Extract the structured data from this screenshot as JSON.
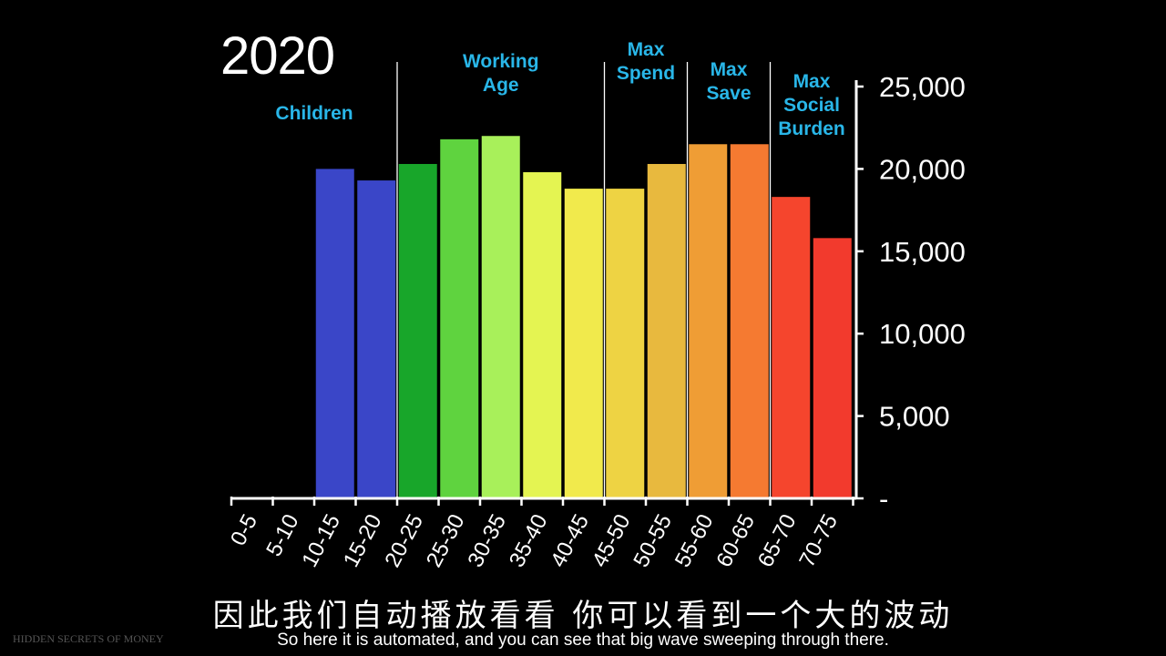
{
  "year": "2020",
  "chart_data": {
    "type": "bar",
    "title": "2020",
    "categories": [
      "0-5",
      "5-10",
      "10-15",
      "15-20",
      "20-25",
      "25-30",
      "30-35",
      "35-40",
      "40-45",
      "45-50",
      "50-55",
      "55-60",
      "60-65",
      "65-70",
      "70-75"
    ],
    "values": [
      0,
      0,
      20000,
      19300,
      20300,
      21800,
      22000,
      19800,
      18800,
      18800,
      20300,
      21500,
      21500,
      18300,
      15800
    ],
    "colors": [
      "#3a46c8",
      "#3a46c8",
      "#3a46c8",
      "#3a46c8",
      "#18a62a",
      "#5fd33f",
      "#a8f05a",
      "#e4f452",
      "#f1ea4c",
      "#eed343",
      "#e8b93e",
      "#ef9d35",
      "#f57a31",
      "#f5452d",
      "#f23a2d"
    ],
    "y_ticks": [
      "-",
      "5,000",
      "10,000",
      "15,000",
      "20,000",
      "25,000"
    ],
    "y_tick_values": [
      0,
      5000,
      10000,
      15000,
      20000,
      25000
    ],
    "ylim": [
      0,
      25000
    ],
    "xlabel": "",
    "ylabel": "",
    "groups": [
      {
        "label": "Children",
        "start": 0,
        "end": 4
      },
      {
        "label": "Working\nAge",
        "start": 4,
        "end": 9
      },
      {
        "label": "Max\nSpend",
        "start": 9,
        "end": 11
      },
      {
        "label": "Max\nSave",
        "start": 11,
        "end": 13
      },
      {
        "label": "Max\nSocial\nBurden",
        "start": 13,
        "end": 15
      }
    ]
  },
  "subtitles": {
    "zh": "因此我们自动播放看看  你可以看到一个大的波动",
    "en": "So here it is automated,  and you can see that big wave sweeping through there."
  },
  "watermark": "HIDDEN SECRETS OF MONEY"
}
